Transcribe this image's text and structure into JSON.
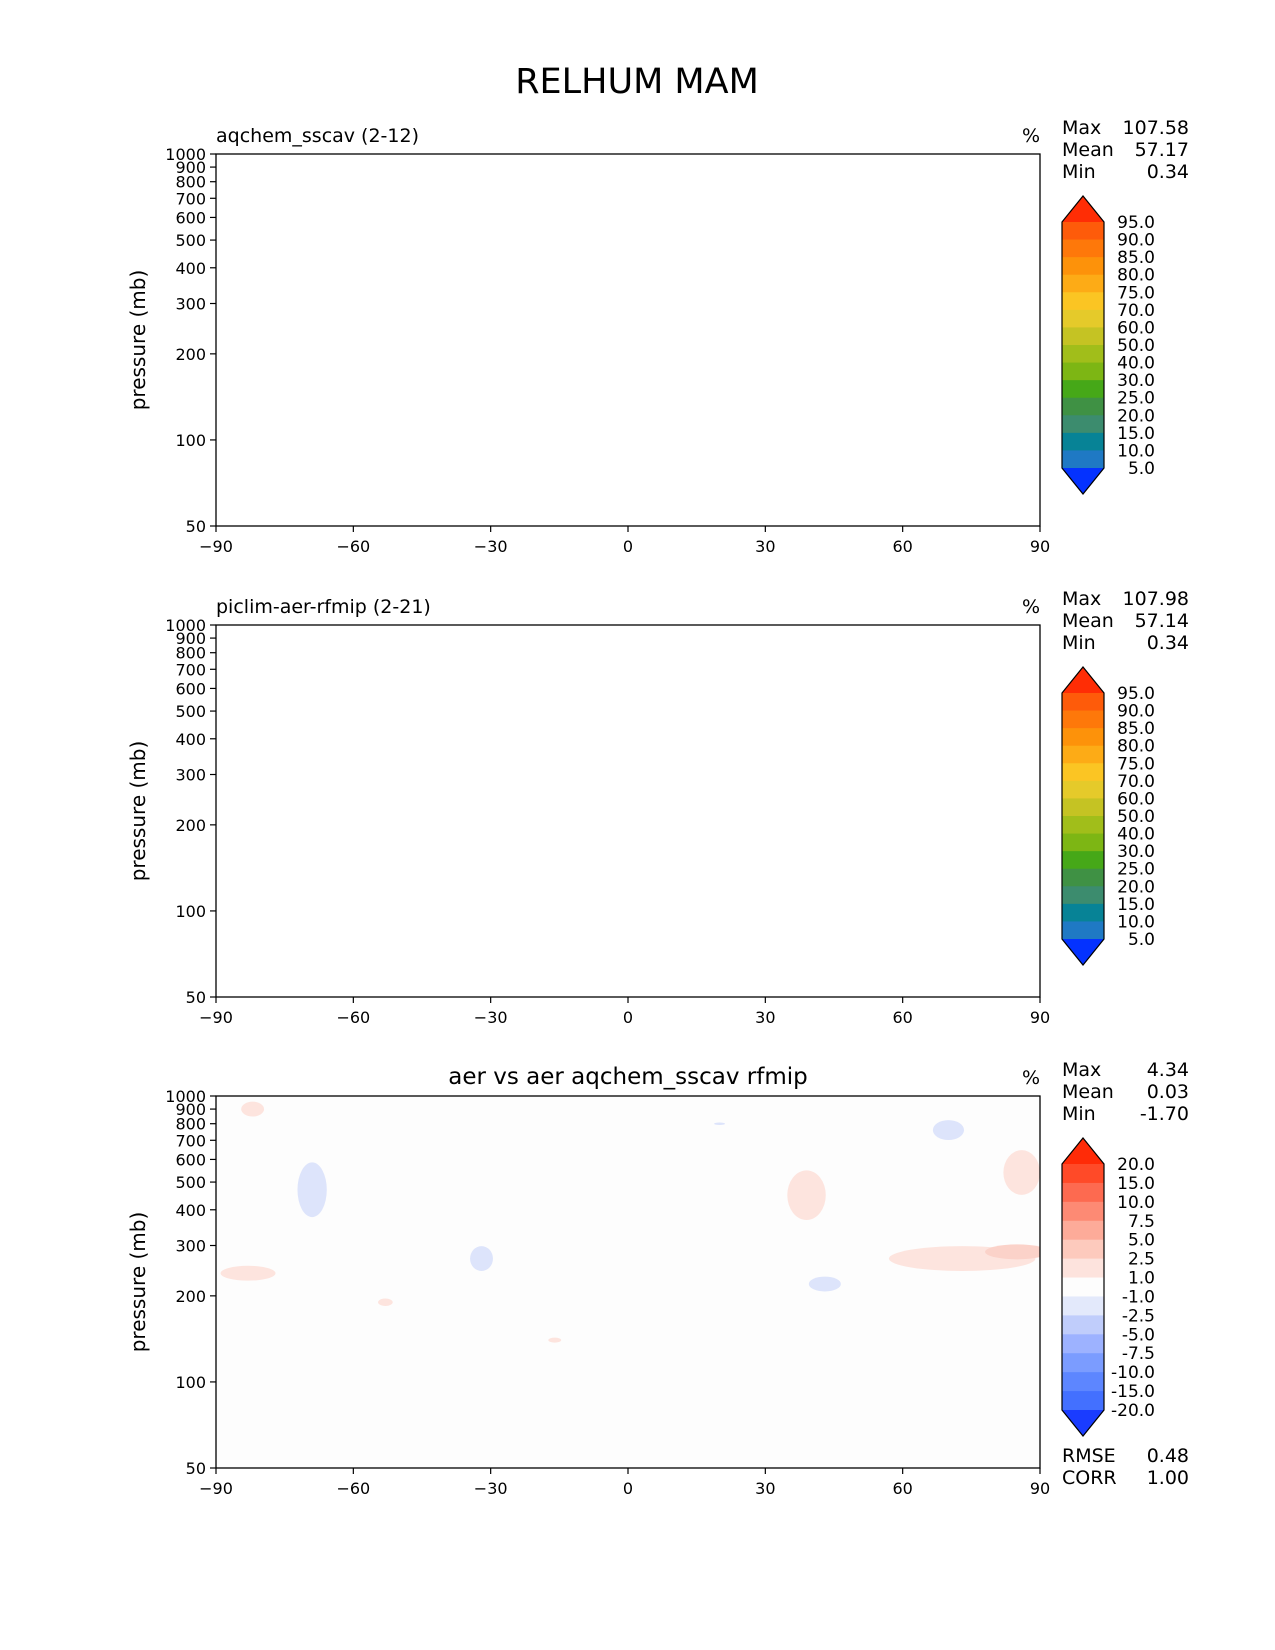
{
  "figure_title": "RELHUM MAM",
  "colors": {
    "abs_levels": [
      "#0432ff",
      "#0b5ee0",
      "#1f79c4",
      "#078396",
      "#3c8c6e",
      "#3f9144",
      "#46a818",
      "#7db614",
      "#a1be1a",
      "#c5c323",
      "#e5ca2a",
      "#fbc523",
      "#fdab16",
      "#fd920a",
      "#fe780a",
      "#fe5b0a",
      "#ff2d05"
    ],
    "diff_levels": [
      "#1a3cff",
      "#2b55ff",
      "#4370ff",
      "#5d86ff",
      "#7b9cff",
      "#9db2ff",
      "#c0cdfb",
      "#e3e9fb",
      "#fdfdfd",
      "#fde3dd",
      "#fdcabd",
      "#fdab99",
      "#fd8a74",
      "#fd6a50",
      "#ff4a28",
      "#ff2b07"
    ],
    "diff_bg": "#fdfdfd",
    "diff_pos_light": "#fde4de",
    "diff_neg_light": "#dde4fb"
  },
  "chart_data": [
    {
      "type": "heatmap",
      "title": "aqchem_sscav (2-12)",
      "units": "%",
      "stats": {
        "max_label": "Max",
        "max": "107.58",
        "mean_label": "Mean",
        "mean": "57.17",
        "min_label": "Min",
        "min": "0.34"
      },
      "xlabel": "",
      "ylabel": "pressure (mb)",
      "xlim": [
        -90,
        90
      ],
      "ylim": [
        1000,
        50
      ],
      "x_ticks": [
        "−90",
        "−60",
        "−30",
        "0",
        "30",
        "60",
        "90"
      ],
      "y_ticks": [
        "50",
        "100",
        "200",
        "300",
        "400",
        "500",
        "600",
        "700",
        "800",
        "900",
        "1000"
      ],
      "colorbar_labels": [
        "95.0",
        "90.0",
        "85.0",
        "80.0",
        "75.0",
        "70.0",
        "60.0",
        "50.0",
        "40.0",
        "30.0",
        "25.0",
        "20.0",
        "15.0",
        "10.0",
        "5.0"
      ]
    },
    {
      "type": "heatmap",
      "title": "piclim-aer-rfmip (2-21)",
      "units": "%",
      "stats": {
        "max_label": "Max",
        "max": "107.98",
        "mean_label": "Mean",
        "mean": "57.14",
        "min_label": "Min",
        "min": "0.34"
      },
      "xlabel": "",
      "ylabel": "pressure (mb)",
      "xlim": [
        -90,
        90
      ],
      "ylim": [
        1000,
        50
      ],
      "x_ticks": [
        "−90",
        "−60",
        "−30",
        "0",
        "30",
        "60",
        "90"
      ],
      "y_ticks": [
        "50",
        "100",
        "200",
        "300",
        "400",
        "500",
        "600",
        "700",
        "800",
        "900",
        "1000"
      ],
      "colorbar_labels": [
        "95.0",
        "90.0",
        "85.0",
        "80.0",
        "75.0",
        "70.0",
        "60.0",
        "50.0",
        "40.0",
        "30.0",
        "25.0",
        "20.0",
        "15.0",
        "10.0",
        "5.0"
      ]
    },
    {
      "type": "heatmap",
      "title": "aer vs aer aqchem_sscav rfmip",
      "units": "%",
      "stats": {
        "max_label": "Max",
        "max": "4.34",
        "mean_label": "Mean",
        "mean": "0.03",
        "min_label": "Min",
        "min": "-1.70"
      },
      "extra_stats": {
        "rmse_label": "RMSE",
        "rmse": "0.48",
        "corr_label": "CORR",
        "corr": "1.00"
      },
      "xlabel": "",
      "ylabel": "pressure (mb)",
      "xlim": [
        -90,
        90
      ],
      "ylim": [
        1000,
        50
      ],
      "x_ticks": [
        "−90",
        "−60",
        "−30",
        "0",
        "30",
        "60",
        "90"
      ],
      "y_ticks": [
        "50",
        "100",
        "200",
        "300",
        "400",
        "500",
        "600",
        "700",
        "800",
        "900",
        "1000"
      ],
      "colorbar_labels": [
        "20.0",
        "15.0",
        "10.0",
        "7.5",
        "5.0",
        "2.5",
        "1.0",
        "-1.0",
        "-2.5",
        "-5.0",
        "-7.5",
        "-10.0",
        "-15.0",
        "-20.0"
      ]
    }
  ]
}
